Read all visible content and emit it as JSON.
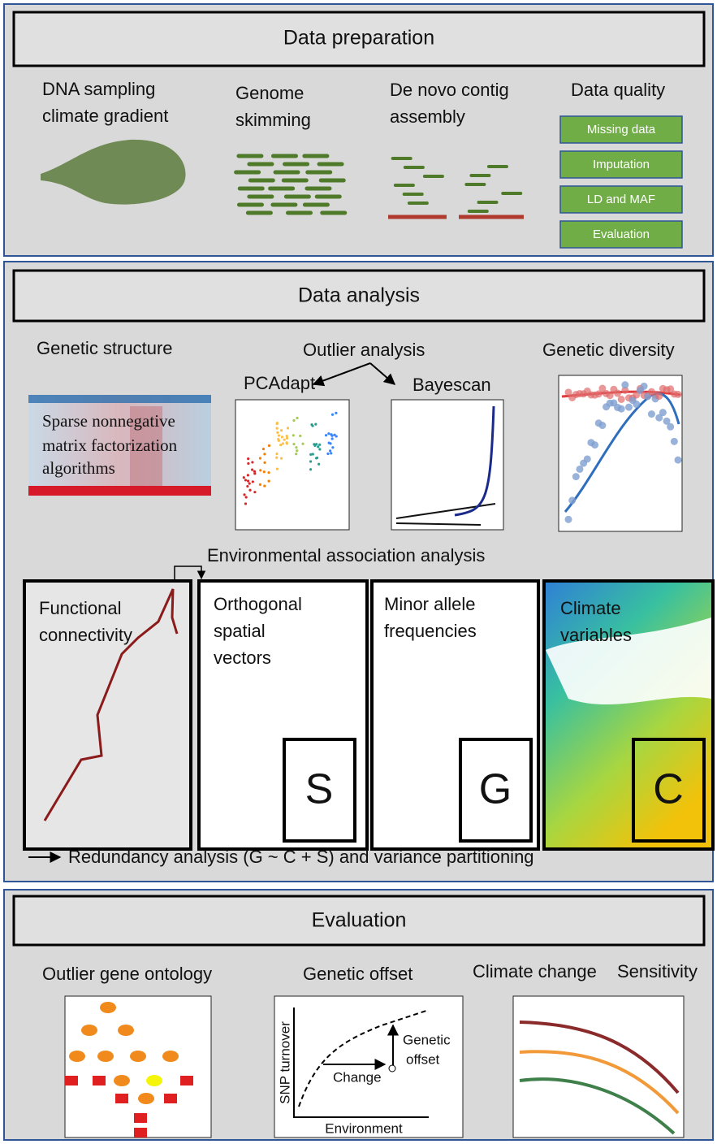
{
  "data_preparation": {
    "title": "Data preparation",
    "steps": [
      [
        "DNA sampling",
        "climate gradient"
      ],
      [
        "Genome",
        "skimming"
      ],
      [
        "De novo contig",
        "assembly"
      ],
      [
        "Data quality"
      ]
    ],
    "quality_checks": [
      "Missing data",
      "Imputation",
      "LD and MAF",
      "Evaluation"
    ]
  },
  "data_analysis": {
    "title": "Data analysis",
    "genetic_structure": "Genetic structure",
    "structure_method": [
      "Sparse nonnegative",
      "matrix factorization",
      "algorithms"
    ],
    "outlier_analysis": "Outlier analysis",
    "outlier_methods": [
      "PCAdapt",
      "Bayescan"
    ],
    "genetic_diversity": "Genetic diversity",
    "environmental_association": "Environmental association analysis",
    "panels": [
      {
        "label": [
          "Functional",
          "connectivity"
        ]
      },
      {
        "label": [
          "Orthogonal",
          "spatial",
          "vectors"
        ],
        "letter": "S"
      },
      {
        "label": [
          "Minor allele",
          "frequencies"
        ],
        "letter": "G"
      },
      {
        "label": [
          "Climate",
          "variables"
        ],
        "letter": "C"
      }
    ],
    "redundancy": "Redundancy analysis (G ~ C + S) and variance partitioning"
  },
  "evaluation": {
    "title": "Evaluation",
    "columns": [
      "Outlier gene ontology",
      "Genetic offset",
      "Climate change",
      "Sensitivity"
    ],
    "offset_plot": {
      "y_label": "SNP turnover",
      "x_label": "Environment",
      "offset": [
        "Genetic",
        "offset"
      ],
      "change": "Change"
    }
  }
}
